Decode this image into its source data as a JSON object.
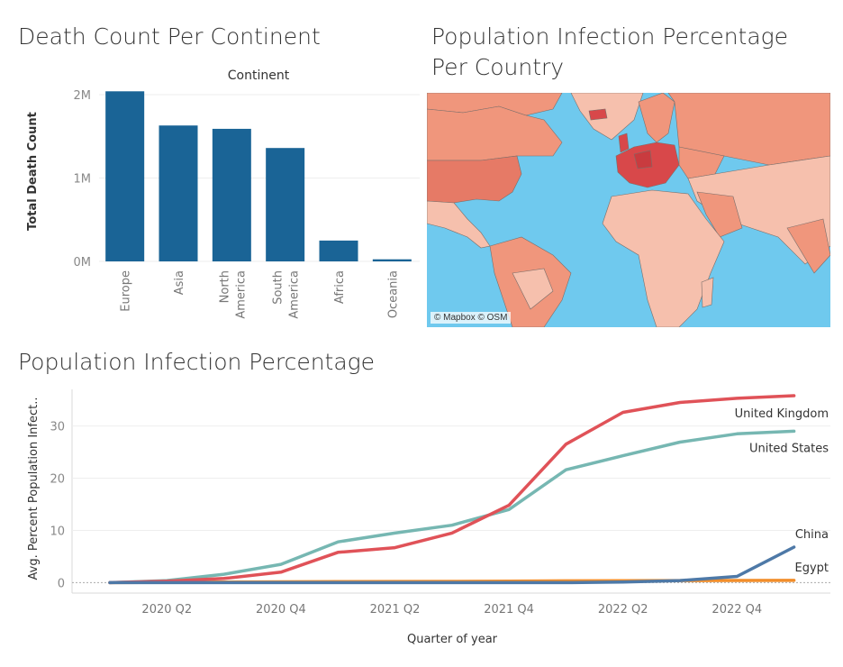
{
  "dashboard": {
    "bar_title": "Death Count Per Continent",
    "map_title": "Population Infection Percentage Per Country",
    "line_title": "Population Infection Percentage"
  },
  "map": {
    "attribution": "© Mapbox © OSM",
    "colors": {
      "ocean": "#6fc9ee",
      "low": "#f6c0ad",
      "mid": "#f0967c",
      "high": "#d8484a"
    }
  },
  "chart_data": [
    {
      "type": "bar",
      "title": "Continent",
      "ylabel": "Total Death Count",
      "categories": [
        "Europe",
        "Asia",
        "North America",
        "South America",
        "Africa",
        "Oceania"
      ],
      "category_lines": [
        [
          "Europe"
        ],
        [
          "Asia"
        ],
        [
          "North",
          "America"
        ],
        [
          "South",
          "America"
        ],
        [
          "Africa"
        ],
        [
          "Oceania"
        ]
      ],
      "values": [
        2040000,
        1630000,
        1590000,
        1360000,
        250000,
        25000
      ],
      "ylim": [
        0,
        2000000
      ],
      "yticks": [
        0,
        1000000,
        2000000
      ],
      "ytick_labels": [
        "0M",
        "1M",
        "2M"
      ],
      "color": "#1a6496"
    },
    {
      "type": "line",
      "xlabel": "Quarter of year",
      "ylabel": "Avg. Percent Population Infect..",
      "x": [
        "2020 Q1",
        "2020 Q2",
        "2020 Q3",
        "2020 Q4",
        "2021 Q1",
        "2021 Q2",
        "2021 Q3",
        "2021 Q4",
        "2022 Q1",
        "2022 Q2",
        "2022 Q3",
        "2022 Q4",
        "2023 Q1"
      ],
      "xtick_labels": [
        "2020 Q2",
        "2020 Q4",
        "2021 Q2",
        "2021 Q4",
        "2022 Q2",
        "2022 Q4"
      ],
      "yticks": [
        0,
        10,
        20,
        30
      ],
      "ylim": [
        -2,
        37
      ],
      "series": [
        {
          "name": "United Kingdom",
          "color": "#e05258",
          "values": [
            0,
            0.3,
            0.8,
            2.0,
            5.8,
            6.7,
            9.5,
            14.8,
            26.5,
            32.6,
            34.5,
            35.3,
            35.8
          ]
        },
        {
          "name": "United States",
          "color": "#76b7b2",
          "values": [
            0,
            0.4,
            1.6,
            3.5,
            7.8,
            9.5,
            11.0,
            14.0,
            21.6,
            24.3,
            26.9,
            28.5,
            29.0
          ]
        },
        {
          "name": "China",
          "color": "#4e79a7",
          "values": [
            0,
            0,
            0,
            0,
            0,
            0,
            0,
            0,
            0,
            0.1,
            0.4,
            1.2,
            6.8
          ]
        },
        {
          "name": "Egypt",
          "color": "#f28e2b",
          "values": [
            0,
            0.05,
            0.1,
            0.15,
            0.2,
            0.22,
            0.25,
            0.3,
            0.35,
            0.38,
            0.4,
            0.42,
            0.44
          ]
        }
      ]
    }
  ]
}
